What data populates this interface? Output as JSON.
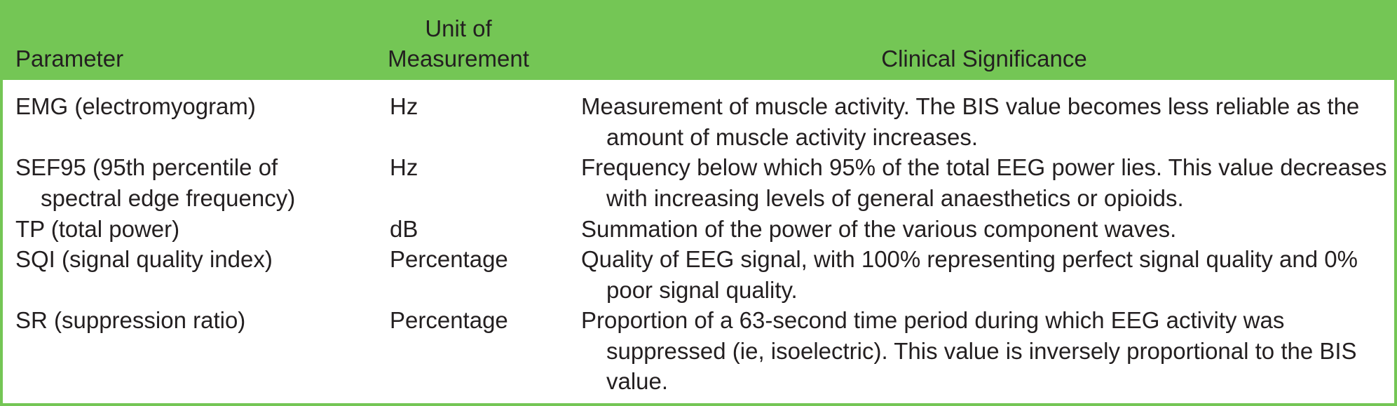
{
  "header": {
    "parameter": "Parameter",
    "unit_line1": "Unit of",
    "unit_line2": "Measurement",
    "significance": "Clinical Significance"
  },
  "rows": [
    {
      "parameter": "EMG (electromyogram)",
      "unit": "Hz",
      "significance": "Measurement of muscle activity. The BIS value becomes less reliable as the amount of muscle activity increases."
    },
    {
      "parameter": "SEF95 (95th percentile of spectral edge frequency)",
      "unit": "Hz",
      "significance": "Frequency below which 95% of the total EEG power lies. This value decreases with increasing levels of general anaesthetics or opioids."
    },
    {
      "parameter": "TP (total power)",
      "unit": "dB",
      "significance": "Summation of the power of the various component waves."
    },
    {
      "parameter": "SQI (signal quality index)",
      "unit": "Percentage",
      "significance": "Quality of EEG signal, with 100% representing perfect signal quality and 0% poor signal quality."
    },
    {
      "parameter": "SR (suppression ratio)",
      "unit": "Percentage",
      "significance": "Proportion of a 63-second time period during which EEG activity was suppressed (ie, isoelectric). This value is inversely proportional to the BIS value."
    }
  ],
  "colors": {
    "header_background": "#74c655",
    "border": "#74c655",
    "text": "#231f20"
  }
}
